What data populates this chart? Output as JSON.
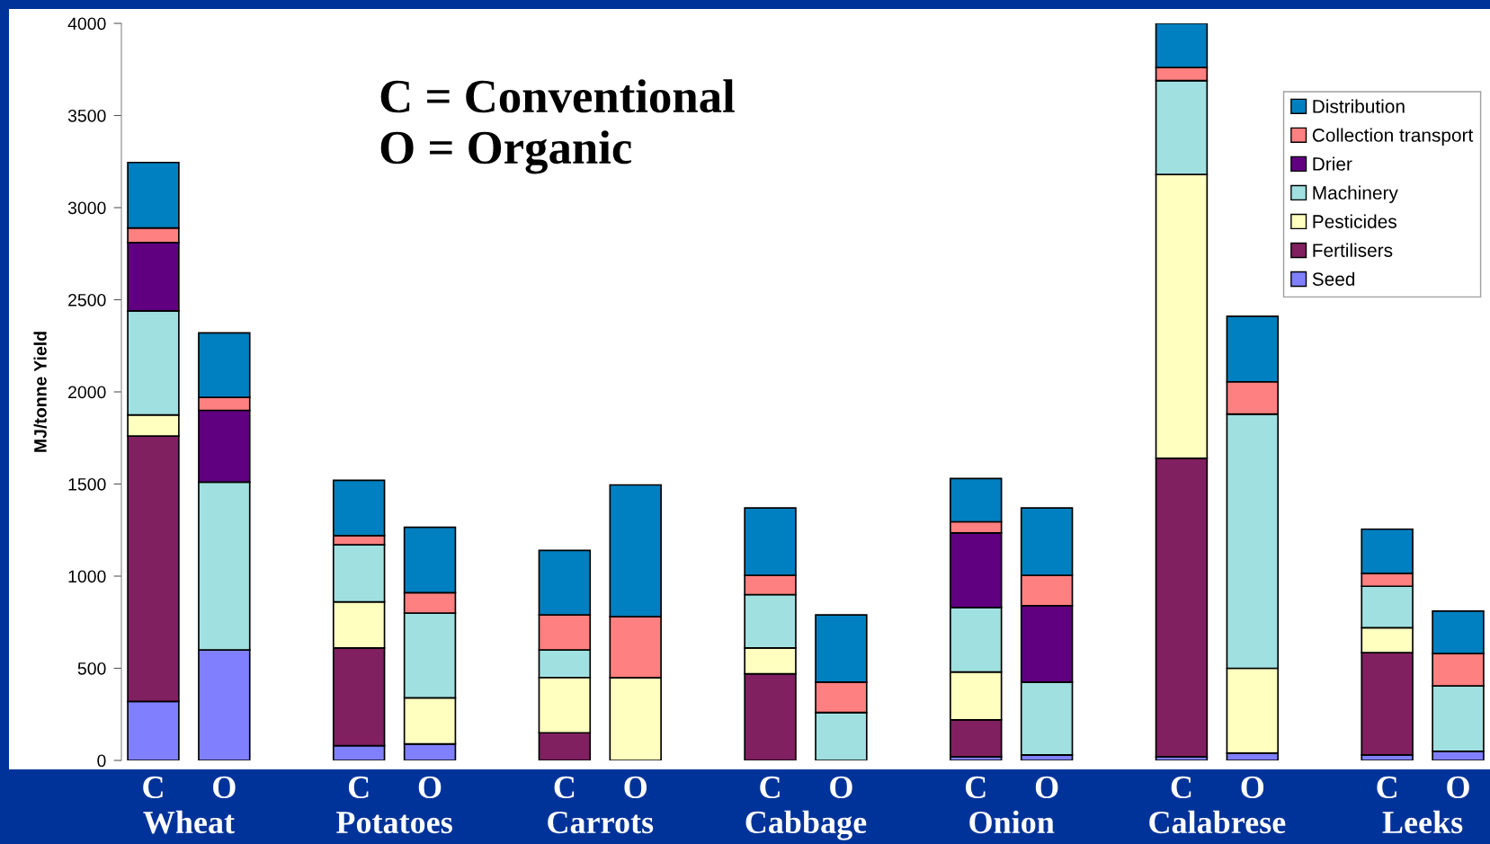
{
  "chart_data": {
    "type": "bar",
    "stacked": true,
    "ylabel": "MJ/tonne Yield",
    "categories": [
      "C",
      "O",
      "C",
      "O",
      "C",
      "O",
      "C",
      "O",
      "C",
      "O",
      "C",
      "O",
      "C",
      "O"
    ],
    "series": [
      {
        "name": "Seed",
        "color": "#8080ff",
        "values": [
          320,
          600,
          80,
          90,
          0,
          null,
          0,
          0,
          20,
          30,
          20,
          40,
          30,
          50
        ]
      },
      {
        "name": "Fertilisers",
        "color": "#802060",
        "values": [
          1440,
          0,
          530,
          0,
          150,
          0,
          470,
          0,
          200,
          0,
          1620,
          0,
          555,
          0
        ]
      },
      {
        "name": "Pesticides",
        "color": "#ffffc0",
        "values": [
          115,
          0,
          250,
          250,
          300,
          450,
          140,
          0,
          260,
          0,
          1540,
          460,
          135,
          0
        ]
      },
      {
        "name": "Machinery",
        "color": "#a0e0e0",
        "values": [
          565,
          910,
          310,
          460,
          150,
          0,
          290,
          260,
          350,
          395,
          510,
          1380,
          225,
          355
        ]
      },
      {
        "name": "Drier",
        "color": "#600080",
        "values": [
          370,
          390,
          0,
          0,
          0,
          0,
          0,
          0,
          405,
          415,
          0,
          0,
          0,
          0
        ]
      },
      {
        "name": "Collection transport",
        "color": "#ff8080",
        "values": [
          80,
          70,
          50,
          110,
          190,
          330,
          105,
          165,
          60,
          165,
          70,
          175,
          70,
          175
        ]
      },
      {
        "name": "Distribution",
        "color": "#0080c0",
        "values": [
          355,
          350,
          300,
          355,
          350,
          715,
          365,
          365,
          235,
          365,
          240,
          355,
          240,
          230
        ]
      }
    ],
    "ylim": [
      0,
      4000
    ],
    "yticks": [
      0,
      500,
      1000,
      1500,
      2000,
      2500,
      3000,
      3500,
      4000
    ],
    "legend": "top right",
    "grid": false,
    "annotations": [
      "C = Conventional\nO = Organic",
      "Wheat",
      "Potatoes",
      "Carrots",
      "Cabbage",
      "Onion",
      "Calabrese",
      "Leeks"
    ]
  }
}
